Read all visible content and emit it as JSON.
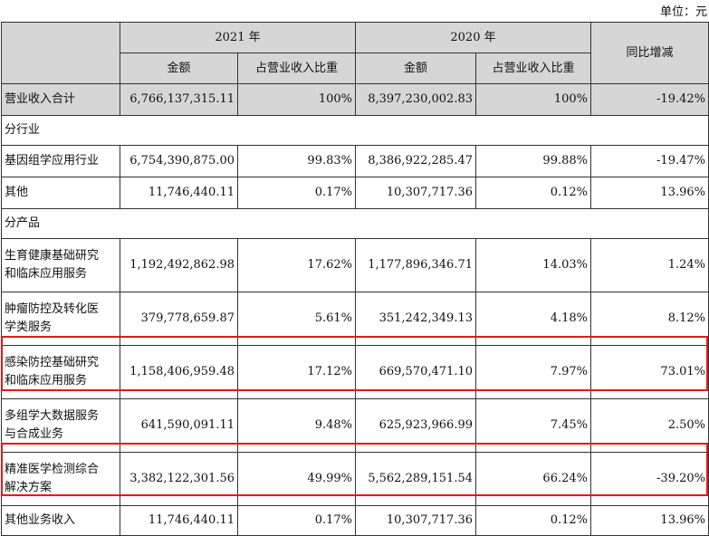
{
  "unit_label": "单位：元",
  "header": {
    "year_2021": "2021 年",
    "year_2020": "2020 年",
    "yoy": "同比增减",
    "amount": "金额",
    "ratio": "占营业收入比重"
  },
  "total": {
    "label": "营业收入合计",
    "a2021": "6,766,137,315.11",
    "r2021": "100%",
    "a2020": "8,397,230,002.83",
    "r2020": "100%",
    "yoy": "-19.42%"
  },
  "section_industry": "分行业",
  "industry": [
    {
      "label": "基因组学应用行业",
      "a2021": "6,754,390,875.00",
      "r2021": "99.83%",
      "a2020": "8,386,922,285.47",
      "r2020": "99.88%",
      "yoy": "-19.47%"
    },
    {
      "label": "其他",
      "a2021": "11,746,440.11",
      "r2021": "0.17%",
      "a2020": "10,307,717.36",
      "r2020": "0.12%",
      "yoy": "13.96%"
    }
  ],
  "section_product": "分产品",
  "products": [
    {
      "label1": "生育健康基础研究",
      "label2": "和临床应用服务",
      "a2021": "1,192,492,862.98",
      "r2021": "17.62%",
      "a2020": "1,177,896,346.71",
      "r2020": "14.03%",
      "yoy": "1.24%"
    },
    {
      "label1": "肿瘤防控及转化医",
      "label2": "学类服务",
      "a2021": "379,778,659.87",
      "r2021": "5.61%",
      "a2020": "351,242,349.13",
      "r2020": "4.18%",
      "yoy": "8.12%"
    },
    {
      "label1": "感染防控基础研究",
      "label2": "和临床应用服务",
      "a2021": "1,158,406,959.48",
      "r2021": "17.12%",
      "a2020": "669,570,471.10",
      "r2020": "7.97%",
      "yoy": "73.01%"
    },
    {
      "label1": "多组学大数据服务",
      "label2": "与合成业务",
      "a2021": "641,590,091.11",
      "r2021": "9.48%",
      "a2020": "625,923,966.99",
      "r2020": "7.45%",
      "yoy": "2.50%"
    },
    {
      "label1": "精准医学检测综合",
      "label2": "解决方案",
      "a2021": "3,382,122,301.56",
      "r2021": "49.99%",
      "a2020": "5,562,289,151.54",
      "r2020": "66.24%",
      "yoy": "-39.20%"
    }
  ],
  "other": {
    "label": "其他业务收入",
    "a2021": "11,746,440.11",
    "r2021": "0.17%",
    "a2020": "10,307,717.36",
    "r2020": "0.12%",
    "yoy": "13.96%"
  },
  "colors": {
    "header_bg": "#d6d6d6",
    "highlight": "#e01b1b"
  }
}
